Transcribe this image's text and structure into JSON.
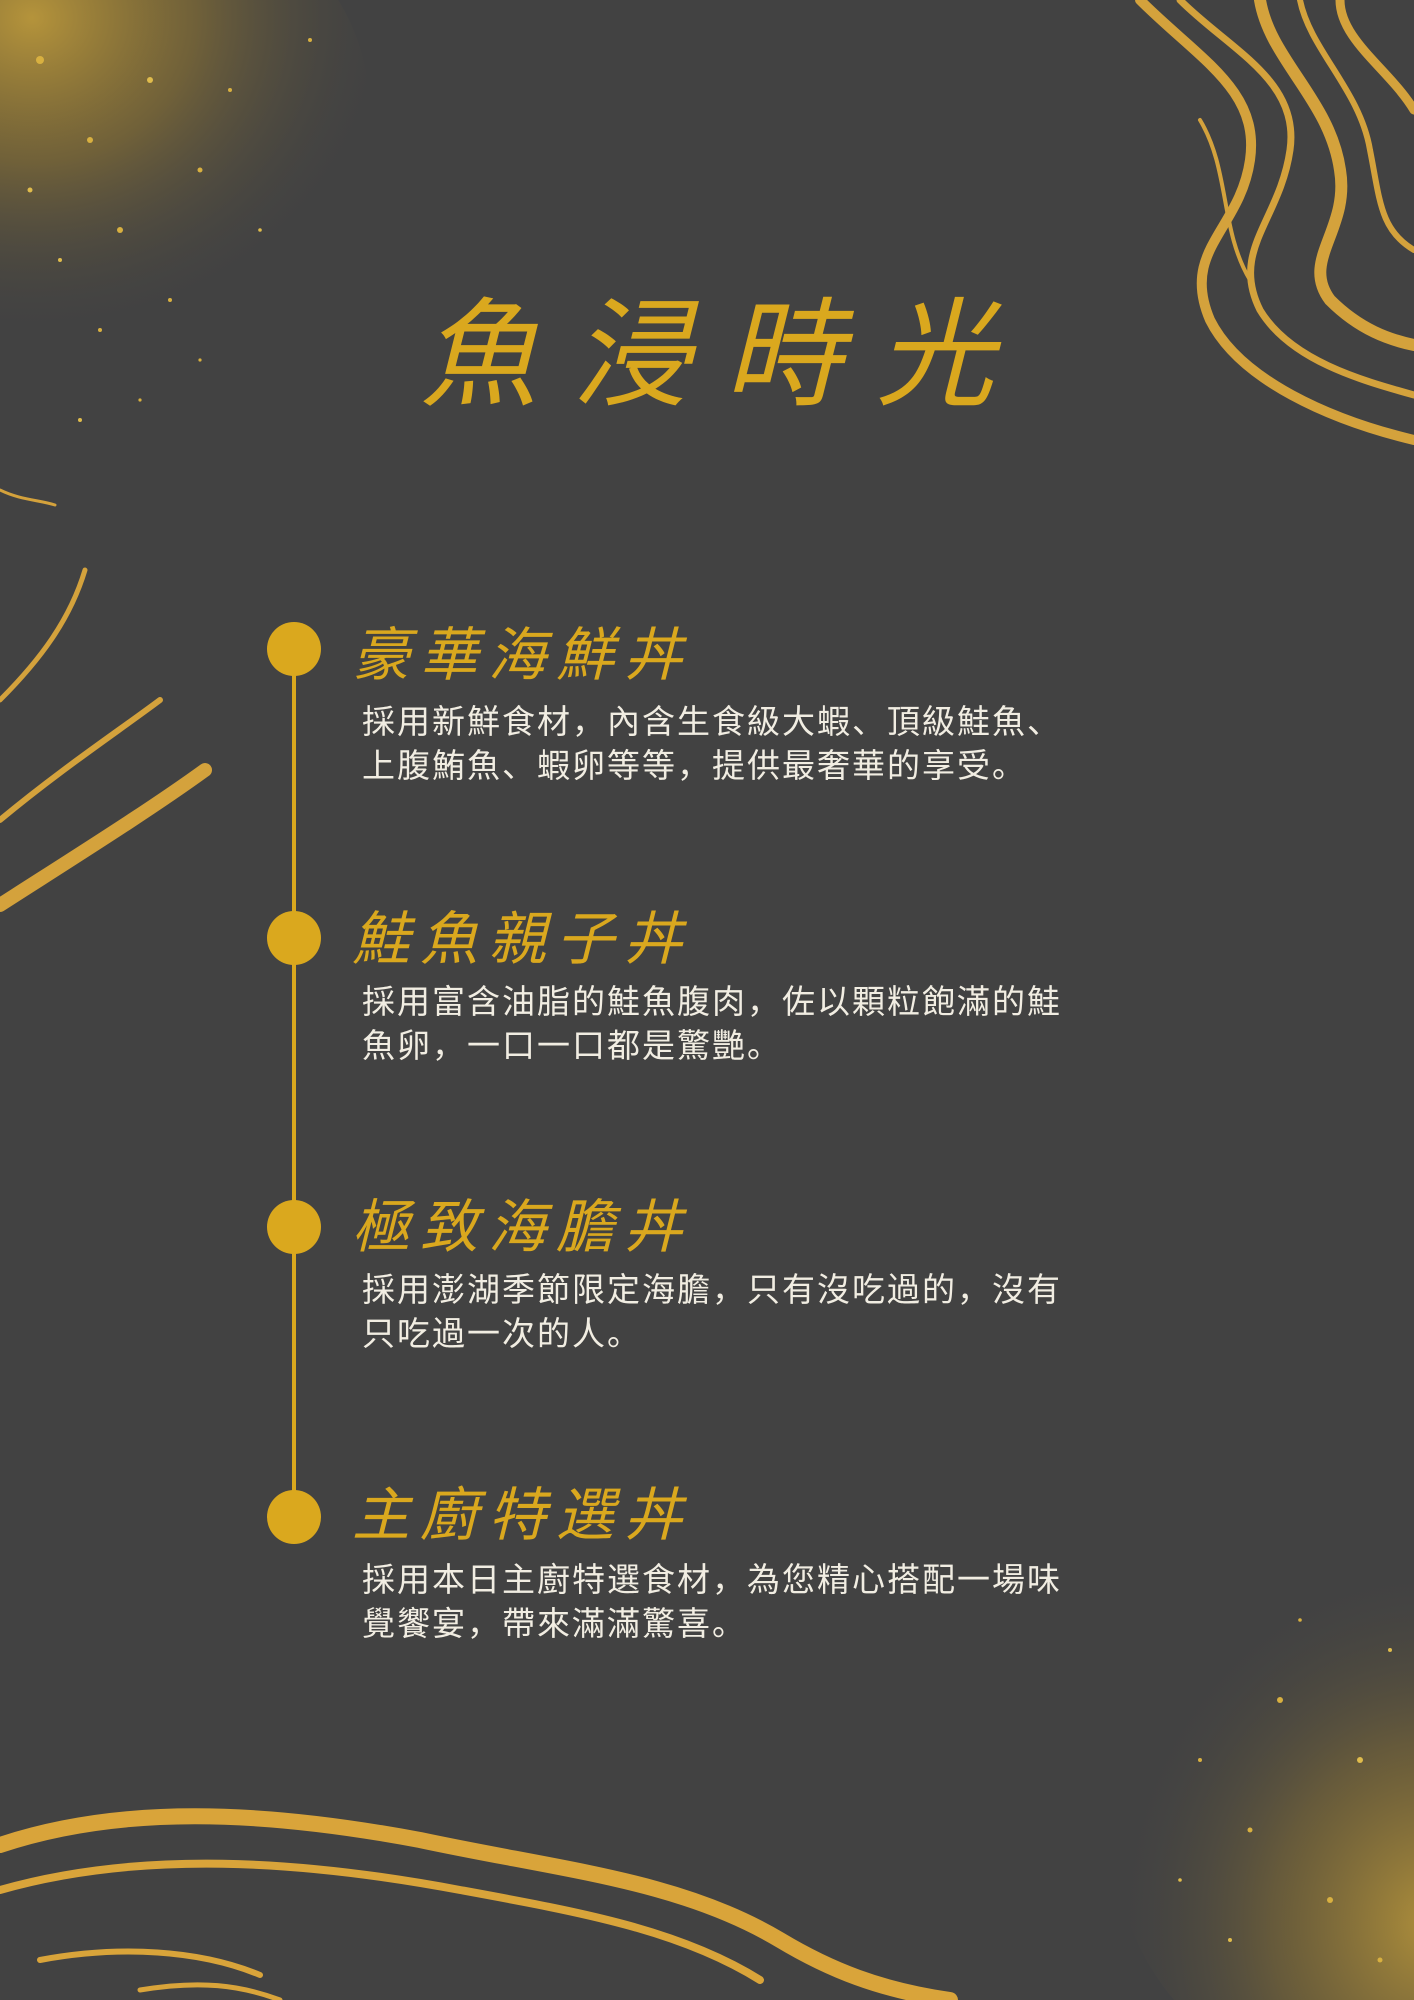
{
  "title": "魚浸時光",
  "items": [
    {
      "name": "豪華海鮮丼",
      "desc_line1": "採用新鮮食材，內含生食級大蝦、頂級鮭魚、",
      "desc_line2": "上腹鮪魚、蝦卵等等，提供最奢華的享受。"
    },
    {
      "name": "鮭魚親子丼",
      "desc_line1": "採用富含油脂的鮭魚腹肉，佐以顆粒飽滿的鮭",
      "desc_line2": "魚卵，一口一口都是驚艷。"
    },
    {
      "name": "極致海膽丼",
      "desc_line1": "採用澎湖季節限定海膽，只有沒吃過的，沒有",
      "desc_line2": "只吃過一次的人。"
    },
    {
      "name": "主廚特選丼",
      "desc_line1": "採用本日主廚特選食材，為您精心搭配一場味",
      "desc_line2": "覺饗宴，帶來滿滿驚喜。"
    }
  ],
  "colors": {
    "background": "#424242",
    "accent": "#DAA81E",
    "text": "#F1EDE2"
  }
}
